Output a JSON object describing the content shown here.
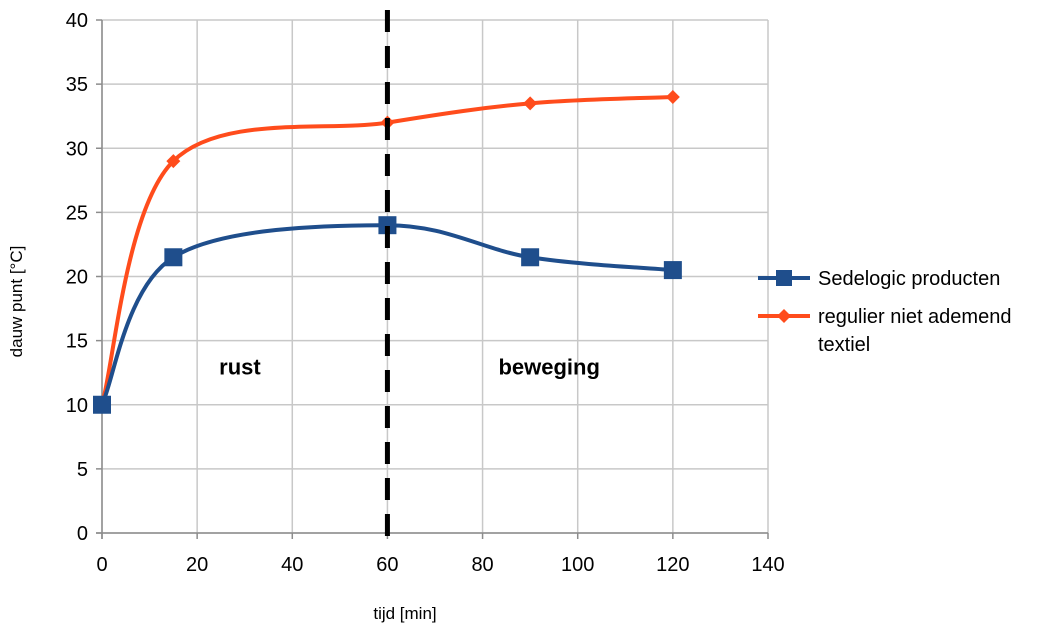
{
  "chart_data": {
    "type": "line",
    "xlabel": "tijd [min]",
    "ylabel": "dauw punt [°C]",
    "xlim": [
      0,
      140
    ],
    "ylim": [
      0,
      40
    ],
    "xticks": [
      0,
      20,
      40,
      60,
      80,
      100,
      120,
      140
    ],
    "yticks": [
      0,
      5,
      10,
      15,
      20,
      25,
      30,
      35,
      40
    ],
    "grid": true,
    "smooth": true,
    "legend_position": "right",
    "series": [
      {
        "name": "Sedelogic producten",
        "color": "#1f4e8c",
        "marker": "square",
        "x": [
          0,
          15,
          60,
          90,
          120
        ],
        "y": [
          10,
          21.5,
          24,
          21.5,
          20.5
        ]
      },
      {
        "name": "regulier niet ademend textiel",
        "name_lines": [
          "regulier niet ademend",
          "textiel"
        ],
        "color": "#ff4c1c",
        "marker": "diamond",
        "x": [
          0,
          15,
          60,
          90,
          120
        ],
        "y": [
          10,
          29,
          32,
          33.5,
          34
        ]
      }
    ],
    "vertical_line": {
      "x": 60,
      "style": "dashed",
      "color": "#000000"
    },
    "annotations": [
      {
        "text": "rust",
        "x": 29,
        "y": 13
      },
      {
        "text": "beweging",
        "x": 94,
        "y": 13
      }
    ]
  }
}
